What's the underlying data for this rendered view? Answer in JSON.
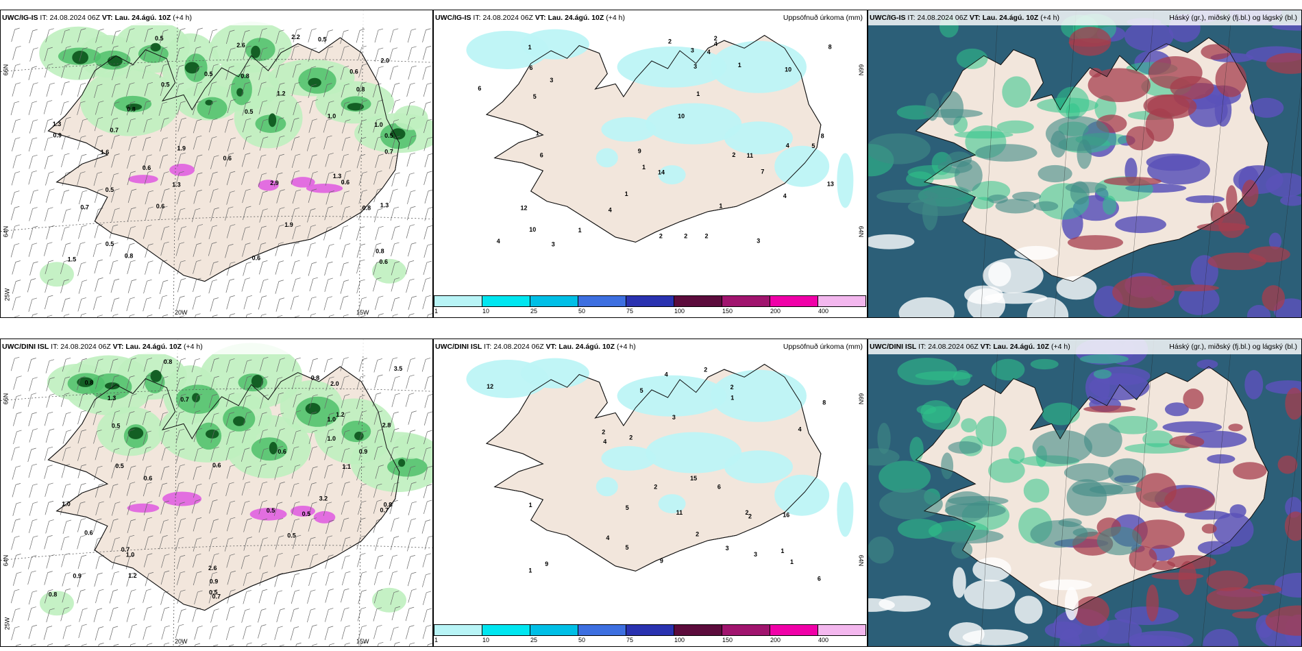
{
  "panels": [
    {
      "id": "top-left",
      "model": "UWC/IG-IS",
      "it_label": "IT:",
      "it_value": "24.08.2024 06Z",
      "vt_label": "VT:",
      "vt_value": "Lau. 24.ágú. 10Z",
      "lead": "(+4 h)",
      "right_title": "",
      "axis_labels": [
        "20W",
        "15W",
        "25W",
        "66N",
        "64N"
      ],
      "values": [
        "0.5",
        "1.0",
        "1.2",
        "0.5",
        "1.9",
        "1.3",
        "1.3",
        "2.2",
        "0.8",
        "0.6",
        "0.8",
        "0.6",
        "1.0",
        "0.6",
        "0.7",
        "0.6",
        "0.6",
        "1.3",
        "0.5",
        "0.5",
        "0.8",
        "0.8",
        "0.5",
        "0.5",
        "0.5",
        "0.5",
        "1.5",
        "1.9",
        "0.6",
        "2.0",
        "0.8",
        "0.6",
        "1.6",
        "2.6",
        "0.7",
        "0.9",
        "0.7",
        "2.9",
        "0.8",
        "1.3"
      ]
    },
    {
      "id": "top-middle",
      "model": "UWC/IG-IS",
      "it_label": "IT:",
      "it_value": "24.08.2024 06Z",
      "vt_label": "VT:",
      "vt_value": "Lau. 24.ágú. 10Z",
      "lead": "(+4 h)",
      "right_title": "Uppsöfnuð úrkoma (mm)",
      "axis_labels": [
        "66N",
        "64N"
      ],
      "values": [
        "1",
        "1",
        "1",
        "4",
        "10",
        "12",
        "13",
        "9",
        "4",
        "8",
        "1",
        "2",
        "3",
        "4",
        "6",
        "8",
        "4",
        "4",
        "3",
        "2",
        "3",
        "1",
        "14",
        "7",
        "10",
        "11",
        "5",
        "6",
        "2",
        "1",
        "2",
        "10",
        "2",
        "1",
        "3",
        "6",
        "3",
        "4",
        "5",
        "1",
        "2"
      ]
    },
    {
      "id": "top-right",
      "model": "UWC/IG-IS",
      "it_label": "IT:",
      "it_value": "24.08.2024 06Z",
      "vt_label": "VT:",
      "vt_value": "Lau. 24.ágú. 10Z",
      "lead": "(+4 h)",
      "right_title": "Háský (gr.), miðský (fj.bl.) og lágský (bl.)",
      "axis_labels": [],
      "values": []
    },
    {
      "id": "bottom-left",
      "model": "UWC/DINI ISL",
      "it_label": "IT:",
      "it_value": "24.08.2024 06Z",
      "vt_label": "VT:",
      "vt_value": "Lau. 24.ágú. 10Z",
      "lead": "(+4 h)",
      "right_title": "",
      "axis_labels": [
        "20W",
        "15W",
        "25W",
        "66N",
        "64N"
      ],
      "values": [
        "0.5",
        "0.5",
        "0.6",
        "0.6",
        "0.5",
        "0.5",
        "1.0",
        "0.8",
        "2.0",
        "1.2",
        "3.2",
        "0.6",
        "0.8",
        "0.7",
        "1.0",
        "0.9",
        "0.7",
        "0.8",
        "0.5",
        "1.1",
        "0.8",
        "0.6",
        "1.3",
        "1.0",
        "2.6",
        "0.5",
        "0.8",
        "0.9",
        "1.2",
        "0.7",
        "0.9",
        "1.0",
        "0.7",
        "2.8",
        "3.5"
      ]
    },
    {
      "id": "bottom-middle",
      "model": "UWC/DINI ISL",
      "it_label": "IT:",
      "it_value": "24.08.2024 06Z",
      "vt_label": "VT:",
      "vt_value": "Lau. 24.ágú. 10Z",
      "lead": "(+4 h)",
      "right_title": "Uppsöfnuð úrkoma (mm)",
      "axis_labels": [
        "66N",
        "64N"
      ],
      "values": [
        "1",
        "16",
        "15",
        "11",
        "5",
        "2",
        "1",
        "2",
        "3",
        "4",
        "6",
        "4",
        "5",
        "4",
        "3",
        "2",
        "2",
        "1",
        "2",
        "8",
        "12",
        "9",
        "9",
        "6",
        "2",
        "1",
        "2",
        "3",
        "4",
        "2",
        "1",
        "5"
      ]
    },
    {
      "id": "bottom-right",
      "model": "UWC/DINI ISL",
      "it_label": "IT:",
      "it_value": "24.08.2024 06Z",
      "vt_label": "VT:",
      "vt_value": "Lau. 24.ágú. 10Z",
      "lead": "(+4 h)",
      "right_title": "Háský (gr.), miðský (fj.bl.) og lágský (bl.)",
      "axis_labels": [],
      "values": []
    }
  ],
  "colorbar": {
    "ticks": [
      "1",
      "10",
      "25",
      "50",
      "75",
      "100",
      "150",
      "200",
      "400"
    ],
    "colors": [
      "#b8f4f6",
      "#00e6f0",
      "#00bfe6",
      "#3d6fe0",
      "#2a32b0",
      "#5c0c3c",
      "#a0146e",
      "#f000a8",
      "#f3b7ee"
    ]
  },
  "colors": {
    "land": "#f2e6dc",
    "precip_light": "#bff0bf",
    "precip_mid": "#4fbf6a",
    "precip_dark": "#0f5a20",
    "precip_pink": "#e060e0",
    "accum_cyan": "#bdf4f6",
    "cloud_high": "#2fc58a",
    "cloud_mid": "#2c5f78",
    "cloud_low": "#5b52b8",
    "cloud_red": "#a53e4e"
  }
}
